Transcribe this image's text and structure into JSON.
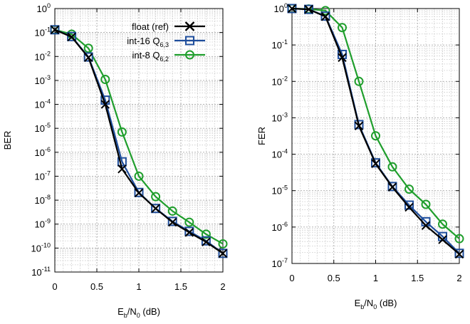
{
  "chart_data": [
    {
      "type": "line",
      "yscale": "log",
      "xlabel": "Eb/N0 (dB)",
      "ylabel": "BER",
      "xlim": [
        0,
        2
      ],
      "ylim": [
        1e-11,
        1
      ],
      "x_ticks": [
        "0",
        "0.5",
        "1",
        "1.5",
        "2"
      ],
      "y_ticks": [
        {
          "base": "10",
          "exp": "0"
        },
        {
          "base": "10",
          "exp": "-1"
        },
        {
          "base": "10",
          "exp": "-2"
        },
        {
          "base": "10",
          "exp": "-3"
        },
        {
          "base": "10",
          "exp": "-4"
        },
        {
          "base": "10",
          "exp": "-5"
        },
        {
          "base": "10",
          "exp": "-6"
        },
        {
          "base": "10",
          "exp": "-7"
        },
        {
          "base": "10",
          "exp": "-8"
        },
        {
          "base": "10",
          "exp": "-9"
        },
        {
          "base": "10",
          "exp": "-10"
        },
        {
          "base": "10",
          "exp": "-11"
        }
      ],
      "grid": true,
      "legend_position": "top-right",
      "x": [
        0,
        0.2,
        0.4,
        0.6,
        0.8,
        1.0,
        1.2,
        1.4,
        1.6,
        1.8,
        2.0
      ],
      "series": [
        {
          "name": "float (ref)",
          "color": "#000000",
          "marker": "x",
          "values": [
            0.13,
            0.065,
            0.009,
            0.0001,
            2e-07,
            2e-08,
            4.5e-09,
            1.2e-09,
            4.5e-10,
            1.8e-10,
            6e-11
          ]
        },
        {
          "name": "int-16 Q6,3",
          "color": "#1f4e9c",
          "marker": "square",
          "values": [
            0.13,
            0.068,
            0.0095,
            0.00015,
            4e-07,
            2.1e-08,
            4.5e-09,
            1.3e-09,
            5e-10,
            2e-10,
            6e-11
          ]
        },
        {
          "name": "int-8 Q6,2",
          "color": "#1f9e2c",
          "marker": "circle",
          "values": [
            0.13,
            0.085,
            0.022,
            0.0011,
            7e-06,
            1e-07,
            1.4e-08,
            3.5e-09,
            1.2e-09,
            3.8e-10,
            1.5e-10
          ]
        }
      ]
    },
    {
      "type": "line",
      "yscale": "log",
      "xlabel": "Eb/N0 (dB)",
      "ylabel": "FER",
      "xlim": [
        0,
        2
      ],
      "ylim": [
        1e-07,
        1
      ],
      "x_ticks": [
        "0",
        "0.5",
        "1",
        "1.5",
        "2"
      ],
      "y_ticks": [
        {
          "base": "10",
          "exp": "0"
        },
        {
          "base": "10",
          "exp": "-1"
        },
        {
          "base": "10",
          "exp": "-2"
        },
        {
          "base": "10",
          "exp": "-3"
        },
        {
          "base": "10",
          "exp": "-4"
        },
        {
          "base": "10",
          "exp": "-5"
        },
        {
          "base": "10",
          "exp": "-6"
        },
        {
          "base": "10",
          "exp": "-7"
        }
      ],
      "grid": true,
      "x": [
        0,
        0.2,
        0.4,
        0.6,
        0.8,
        1.0,
        1.2,
        1.4,
        1.6,
        1.8,
        2.0
      ],
      "series": [
        {
          "name": "float (ref)",
          "color": "#000000",
          "marker": "x",
          "values": [
            1.0,
            0.95,
            0.6,
            0.045,
            0.0006,
            5.5e-05,
            1.25e-05,
            3.5e-06,
            1.1e-06,
            4.5e-07,
            1.8e-07
          ]
        },
        {
          "name": "int-16 Q6,3",
          "color": "#1f4e9c",
          "marker": "square",
          "values": [
            1.0,
            0.95,
            0.62,
            0.055,
            0.00065,
            5.8e-05,
            1.3e-05,
            4e-06,
            1.4e-06,
            5.5e-07,
            1.9e-07
          ]
        },
        {
          "name": "int-8 Q6,2",
          "color": "#1f9e2c",
          "marker": "circle",
          "values": [
            1.0,
            0.97,
            0.88,
            0.3,
            0.01,
            0.00032,
            4.5e-05,
            1.1e-05,
            4.2e-06,
            1.2e-06,
            4.8e-07
          ]
        }
      ]
    }
  ],
  "legend": [
    {
      "base": "float (ref)",
      "sub": ""
    },
    {
      "base": "int-16 Q",
      "sub": "6,3"
    },
    {
      "base": "int-8 Q",
      "sub": "6,2"
    }
  ],
  "axis_label_parts": {
    "e": "E",
    "b": "b",
    "mid": "/N",
    "zero": "0",
    "unit": " (dB)"
  }
}
